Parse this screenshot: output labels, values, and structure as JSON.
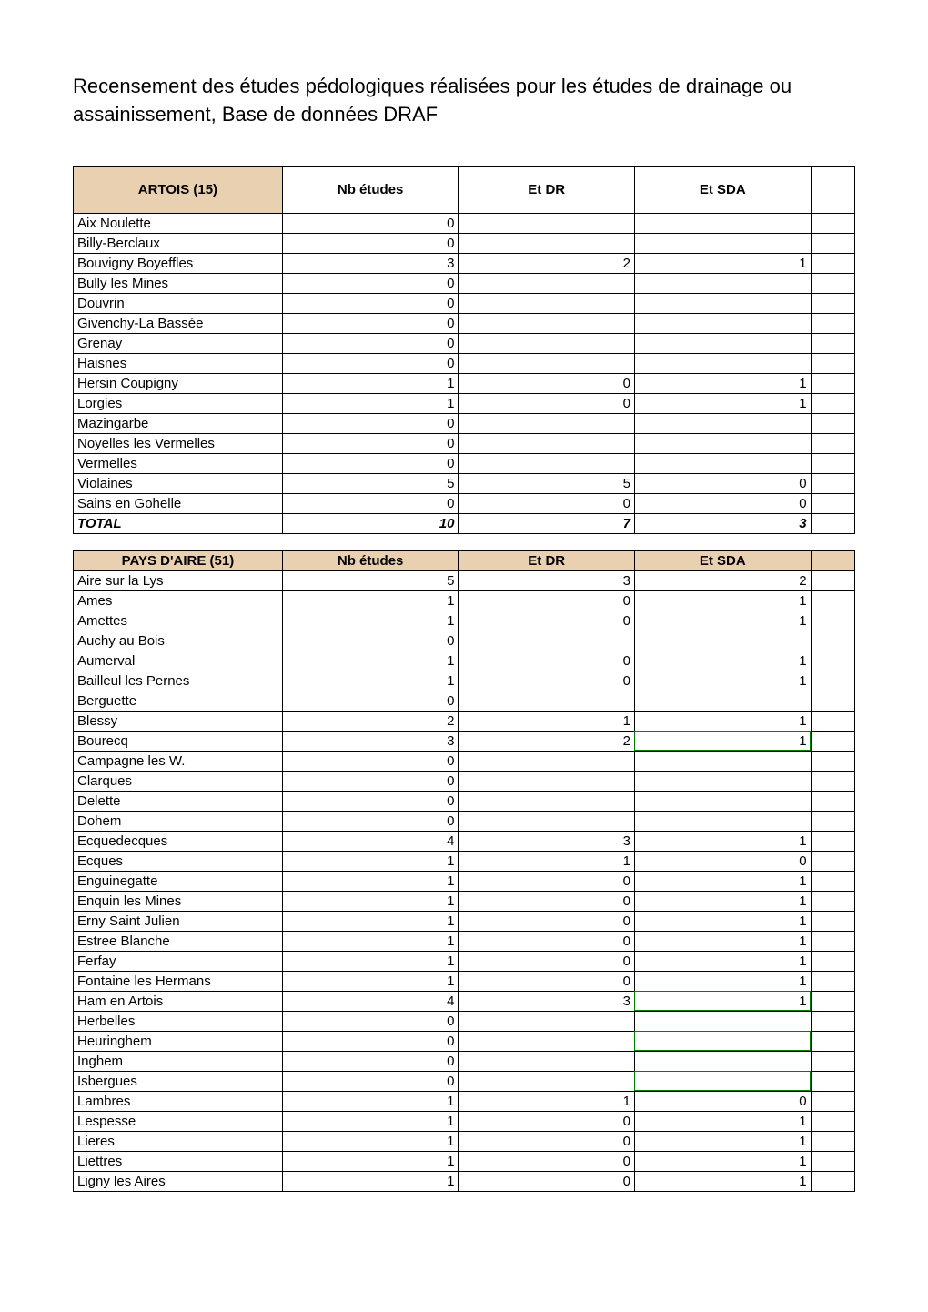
{
  "title": "Recensement des études pédologiques réalisées pour les études de drainage ou assainissement, Base de données DRAF",
  "columns": {
    "region1": "ARTOIS (15)",
    "region2": "PAYS D'AIRE (51)",
    "nb": "Nb études",
    "etdr": "Et DR",
    "etsda": "Et SDA"
  },
  "table1": {
    "rows": [
      {
        "name": "Aix Noulette",
        "nb": "0",
        "etdr": "",
        "etsda": ""
      },
      {
        "name": "Billy-Berclaux",
        "nb": "0",
        "etdr": "",
        "etsda": ""
      },
      {
        "name": "Bouvigny Boyeffles",
        "nb": "3",
        "etdr": "2",
        "etsda": "1"
      },
      {
        "name": "Bully les Mines",
        "nb": "0",
        "etdr": "",
        "etsda": ""
      },
      {
        "name": "Douvrin",
        "nb": "0",
        "etdr": "",
        "etsda": ""
      },
      {
        "name": "Givenchy-La Bassée",
        "nb": "0",
        "etdr": "",
        "etsda": ""
      },
      {
        "name": "Grenay",
        "nb": "0",
        "etdr": "",
        "etsda": ""
      },
      {
        "name": "Haisnes",
        "nb": "0",
        "etdr": "",
        "etsda": ""
      },
      {
        "name": "Hersin Coupigny",
        "nb": "1",
        "etdr": "0",
        "etsda": "1"
      },
      {
        "name": "Lorgies",
        "nb": "1",
        "etdr": "0",
        "etsda": "1"
      },
      {
        "name": "Mazingarbe",
        "nb": "0",
        "etdr": "",
        "etsda": ""
      },
      {
        "name": "Noyelles les Vermelles",
        "nb": "0",
        "etdr": "",
        "etsda": ""
      },
      {
        "name": "Vermelles",
        "nb": "0",
        "etdr": "",
        "etsda": ""
      },
      {
        "name": "Violaines",
        "nb": "5",
        "etdr": "5",
        "etsda": "0"
      },
      {
        "name": "Sains en Gohelle",
        "nb": "0",
        "etdr": "0",
        "etsda": "0"
      }
    ],
    "total": {
      "name": "TOTAL",
      "nb": "10",
      "etdr": "7",
      "etsda": "3"
    }
  },
  "table2": {
    "rows": [
      {
        "name": "Aire sur la Lys",
        "nb": "5",
        "etdr": "3",
        "etsda": "2"
      },
      {
        "name": "Ames",
        "nb": "1",
        "etdr": "0",
        "etsda": "1"
      },
      {
        "name": "Amettes",
        "nb": "1",
        "etdr": "0",
        "etsda": "1"
      },
      {
        "name": "Auchy au Bois",
        "nb": "0",
        "etdr": "",
        "etsda": ""
      },
      {
        "name": "Aumerval",
        "nb": "1",
        "etdr": "0",
        "etsda": "1"
      },
      {
        "name": "Bailleul les Pernes",
        "nb": "1",
        "etdr": "0",
        "etsda": "1"
      },
      {
        "name": "Berguette",
        "nb": "0",
        "etdr": "",
        "etsda": ""
      },
      {
        "name": "Blessy",
        "nb": "2",
        "etdr": "1",
        "etsda": "1"
      },
      {
        "name": "Bourecq",
        "nb": "3",
        "etdr": "2",
        "etsda": "1",
        "green": true
      },
      {
        "name": "Campagne les W.",
        "nb": "0",
        "etdr": "",
        "etsda": ""
      },
      {
        "name": "Clarques",
        "nb": "0",
        "etdr": "",
        "etsda": ""
      },
      {
        "name": "Delette",
        "nb": "0",
        "etdr": "",
        "etsda": ""
      },
      {
        "name": "Dohem",
        "nb": "0",
        "etdr": "",
        "etsda": ""
      },
      {
        "name": "Ecquedecques",
        "nb": "4",
        "etdr": "3",
        "etsda": "1"
      },
      {
        "name": "Ecques",
        "nb": "1",
        "etdr": "1",
        "etsda": "0"
      },
      {
        "name": "Enguinegatte",
        "nb": "1",
        "etdr": "0",
        "etsda": "1"
      },
      {
        "name": "Enquin les Mines",
        "nb": "1",
        "etdr": "0",
        "etsda": "1"
      },
      {
        "name": "Erny Saint Julien",
        "nb": "1",
        "etdr": "0",
        "etsda": "1"
      },
      {
        "name": "Estree Blanche",
        "nb": "1",
        "etdr": "0",
        "etsda": "1"
      },
      {
        "name": "Ferfay",
        "nb": "1",
        "etdr": "0",
        "etsda": "1"
      },
      {
        "name": "Fontaine les Hermans",
        "nb": "1",
        "etdr": "0",
        "etsda": "1"
      },
      {
        "name": "Ham en Artois",
        "nb": "4",
        "etdr": "3",
        "etsda": "1",
        "green": true
      },
      {
        "name": "Herbelles",
        "nb": "0",
        "etdr": "",
        "etsda": ""
      },
      {
        "name": "Heuringhem",
        "nb": "0",
        "etdr": "",
        "etsda": "",
        "green": true
      },
      {
        "name": "Inghem",
        "nb": "0",
        "etdr": "",
        "etsda": ""
      },
      {
        "name": "Isbergues",
        "nb": "0",
        "etdr": "",
        "etsda": "",
        "green": true
      },
      {
        "name": "Lambres",
        "nb": "1",
        "etdr": "1",
        "etsda": "0"
      },
      {
        "name": "Lespesse",
        "nb": "1",
        "etdr": "0",
        "etsda": "1"
      },
      {
        "name": "Lieres",
        "nb": "1",
        "etdr": "0",
        "etsda": "1"
      },
      {
        "name": "Liettres",
        "nb": "1",
        "etdr": "0",
        "etsda": "1"
      },
      {
        "name": "Ligny les Aires",
        "nb": "1",
        "etdr": "0",
        "etsda": "1"
      }
    ]
  }
}
